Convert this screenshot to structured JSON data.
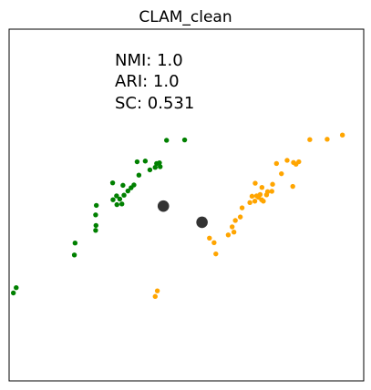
{
  "chart_data": {
    "type": "scatter",
    "title": "CLAM_clean",
    "xlabel": "",
    "ylabel": "",
    "xlim": [
      0,
      100
    ],
    "ylim": [
      0,
      100
    ],
    "grid": false,
    "ticks": false,
    "annotations": [
      "NMI: 1.0",
      "ARI: 1.0",
      "SC: 0.531"
    ],
    "series": [
      {
        "color": "#008000",
        "points": [
          [
            1.2,
            25.0
          ],
          [
            2.0,
            26.5
          ],
          [
            18.4,
            35.8
          ],
          [
            18.6,
            39.2
          ],
          [
            24.4,
            42.8
          ],
          [
            24.5,
            44.2
          ],
          [
            24.4,
            47.2
          ],
          [
            24.6,
            49.9
          ],
          [
            29.3,
            51.5
          ],
          [
            30.4,
            50.1
          ],
          [
            31.2,
            51.7
          ],
          [
            31.8,
            50.3
          ],
          [
            30.3,
            52.6
          ],
          [
            32.4,
            52.8
          ],
          [
            33.5,
            54.0
          ],
          [
            34.4,
            54.9
          ],
          [
            35.2,
            55.7
          ],
          [
            29.2,
            56.3
          ],
          [
            32.1,
            55.6
          ],
          [
            36.6,
            58.5
          ],
          [
            39.7,
            60.0
          ],
          [
            41.2,
            60.7
          ],
          [
            42.6,
            60.9
          ],
          [
            41.6,
            61.8
          ],
          [
            36.1,
            62.3
          ],
          [
            38.4,
            62.5
          ],
          [
            42.4,
            62.0
          ],
          [
            44.4,
            68.4
          ],
          [
            49.5,
            68.5
          ]
        ]
      },
      {
        "color": "#FFA500",
        "points": [
          [
            41.2,
            24.0
          ],
          [
            41.8,
            25.6
          ],
          [
            56.5,
            40.6
          ],
          [
            57.8,
            39.3
          ],
          [
            58.3,
            36.1
          ],
          [
            61.8,
            41.5
          ],
          [
            62.9,
            43.8
          ],
          [
            63.4,
            42.3
          ],
          [
            63.8,
            45.6
          ],
          [
            65.2,
            46.6
          ],
          [
            65.7,
            49.2
          ],
          [
            67.9,
            50.7
          ],
          [
            68.5,
            52.5
          ],
          [
            69.3,
            51.1
          ],
          [
            69.8,
            52.6
          ],
          [
            70.3,
            52.2
          ],
          [
            70.8,
            53.0
          ],
          [
            71.2,
            51.5
          ],
          [
            71.7,
            51.1
          ],
          [
            72.6,
            52.9
          ],
          [
            72.9,
            53.8
          ],
          [
            74.1,
            53.9
          ],
          [
            69.4,
            56.2
          ],
          [
            71.3,
            55.0
          ],
          [
            74.3,
            55.9
          ],
          [
            80.0,
            55.3
          ],
          [
            76.8,
            58.9
          ],
          [
            75.4,
            61.8
          ],
          [
            78.4,
            62.7
          ],
          [
            80.2,
            62.1
          ],
          [
            80.9,
            61.6
          ],
          [
            81.7,
            62.3
          ],
          [
            84.8,
            68.6
          ],
          [
            89.7,
            68.7
          ],
          [
            94.0,
            69.9
          ]
        ]
      }
    ],
    "centroids": {
      "color": "#333333",
      "points": [
        [
          43.5,
          49.7
        ],
        [
          54.4,
          45.1
        ]
      ]
    }
  }
}
